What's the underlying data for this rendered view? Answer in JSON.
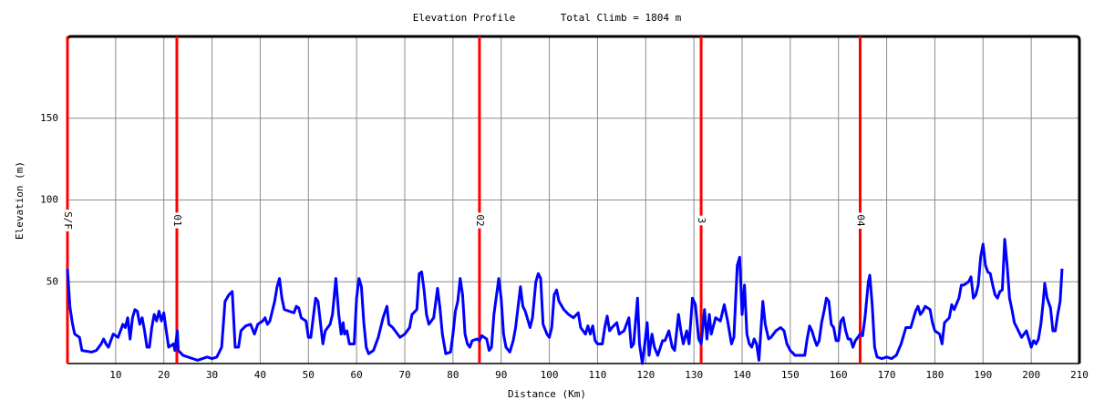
{
  "chart_data": {
    "type": "line",
    "title": "Elevation Profile",
    "subtitle": "Total Climb = 1804 m",
    "x_label": "Distance (Km)",
    "y_label": "Elevation (m)",
    "color": "#0000ff",
    "marker_color": "#ff0000",
    "grid": true,
    "xlim": [
      0,
      210
    ],
    "ylim": [
      0,
      200
    ],
    "xticks": [
      10,
      20,
      30,
      40,
      50,
      60,
      70,
      80,
      90,
      100,
      110,
      120,
      130,
      140,
      150,
      160,
      170,
      180,
      190,
      200,
      210
    ],
    "yticks": [
      50,
      100,
      150
    ],
    "markers": [
      {
        "name": "S/F",
        "x": 0
      },
      {
        "name": "01",
        "x": 22.7
      },
      {
        "name": "02",
        "x": 85.5
      },
      {
        "name": "3",
        "x": 131.5
      },
      {
        "name": "04",
        "x": 164.5
      }
    ],
    "x": [
      0,
      0.5,
      1,
      1.5,
      2.5,
      3,
      5,
      6,
      7,
      7.5,
      8,
      8.5,
      9.5,
      10.5,
      11,
      11.5,
      12,
      12.5,
      13,
      13.5,
      14,
      14.5,
      15,
      15.5,
      16,
      16.5,
      17,
      17.5,
      18,
      18.5,
      19,
      19.5,
      20,
      20.5,
      21,
      22,
      22.3,
      22.8,
      23,
      24,
      26,
      27,
      29,
      30,
      31,
      32,
      32.7,
      33.5,
      34.2,
      34.8,
      35.5,
      36,
      37,
      38,
      38.8,
      39.5,
      40.5,
      41,
      41.5,
      42,
      42.5,
      43,
      43.5,
      44,
      44.5,
      45,
      46,
      47,
      47.5,
      48,
      48.5,
      49.5,
      50,
      50.5,
      51,
      51.5,
      52,
      52.5,
      53,
      53.5,
      54.5,
      55,
      55.7,
      56.3,
      56.8,
      57.2,
      57.5,
      58,
      58.5,
      59.5,
      60,
      60.5,
      61,
      61.5,
      62,
      62.5,
      63.5,
      64.5,
      65.5,
      66.3,
      66.7,
      67.5,
      68,
      69,
      70,
      71,
      71.5,
      72.5,
      73,
      73.5,
      74,
      74.5,
      75,
      76,
      76.8,
      77.3,
      77.8,
      78.5,
      79.5,
      80,
      80.5,
      81,
      81.5,
      82,
      82.5,
      83,
      83.5,
      84,
      85,
      85.5,
      86,
      87,
      87.5,
      88,
      88.5,
      89.5,
      90,
      90.5,
      91,
      91.8,
      92.5,
      93,
      94,
      94.5,
      95,
      96,
      96.5,
      97.2,
      97.7,
      98.2,
      98.7,
      99.5,
      100,
      100.5,
      101,
      101.5,
      102,
      103,
      104,
      105,
      106,
      106.5,
      107,
      107.5,
      108,
      108.5,
      109,
      109.5,
      110,
      111,
      111.5,
      112,
      112.5,
      113,
      114,
      114.5,
      115.5,
      116.5,
      117,
      117.5,
      118.3,
      118.7,
      119.3,
      119.8,
      120.3,
      120.7,
      121.3,
      121.8,
      122.5,
      123.5,
      124,
      124.8,
      125.5,
      126,
      126.8,
      127.3,
      127.8,
      128.5,
      129,
      129.7,
      130.3,
      131,
      131.5,
      132.2,
      132.7,
      133.2,
      133.6,
      134.5,
      135.5,
      136.3,
      137,
      137.8,
      138.3,
      139,
      139.5,
      140,
      140.5,
      141,
      141.5,
      142,
      142.5,
      143,
      143.5,
      144.3,
      144.8,
      145.5,
      146,
      147,
      148,
      148.7,
      149.3,
      150,
      151,
      153,
      153.5,
      154,
      154.5,
      155,
      155.5,
      156,
      156.5,
      157,
      157.5,
      158,
      158.5,
      159,
      159.5,
      160,
      160.5,
      161,
      161.5,
      162,
      162.5,
      163,
      163.5,
      164.5,
      165,
      165.5,
      166.2,
      166.5,
      167,
      167.5,
      168,
      169,
      170,
      171,
      172,
      173,
      174,
      175,
      176,
      176.5,
      177,
      177.5,
      178,
      179,
      179.5,
      180,
      181,
      181.5,
      182,
      183,
      183.5,
      184,
      185,
      185.5,
      186,
      187,
      187.5,
      188,
      188.5,
      189,
      189.5,
      190,
      190.5,
      191,
      191.5,
      192,
      192.5,
      193,
      193.5,
      194,
      194.5,
      195,
      195.5,
      196,
      196.5,
      197,
      198,
      199,
      199.5,
      200,
      200.5,
      201,
      201.5,
      202,
      202.5,
      202.8,
      203.3,
      204,
      204.5,
      205,
      205.5,
      206,
      206.4
    ],
    "values": [
      58,
      35,
      25,
      18,
      16,
      8,
      7,
      8,
      12,
      15,
      12,
      10,
      18,
      16,
      20,
      24,
      22,
      28,
      15,
      28,
      33,
      32,
      24,
      28,
      20,
      10,
      10,
      22,
      30,
      26,
      32,
      26,
      31,
      20,
      10,
      12,
      8,
      20,
      8,
      5,
      3,
      2,
      4,
      3,
      4,
      10,
      38,
      42,
      44,
      10,
      10,
      20,
      23,
      24,
      18,
      24,
      26,
      28,
      24,
      26,
      32,
      38,
      47,
      52,
      40,
      33,
      32,
      31,
      35,
      34,
      28,
      26,
      16,
      16,
      28,
      40,
      38,
      25,
      12,
      20,
      24,
      30,
      52,
      30,
      18,
      25,
      18,
      20,
      12,
      12,
      40,
      52,
      47,
      25,
      10,
      6,
      8,
      16,
      28,
      35,
      24,
      22,
      20,
      16,
      18,
      22,
      30,
      33,
      55,
      56,
      45,
      30,
      24,
      28,
      46,
      34,
      18,
      6,
      7,
      18,
      32,
      38,
      52,
      42,
      18,
      12,
      10,
      14,
      15,
      14,
      17,
      15,
      8,
      10,
      30,
      52,
      40,
      18,
      10,
      7,
      14,
      22,
      47,
      35,
      32,
      22,
      28,
      50,
      55,
      52,
      24,
      18,
      16,
      22,
      42,
      45,
      38,
      33,
      30,
      28,
      31,
      22,
      20,
      18,
      23,
      18,
      23,
      14,
      12,
      12,
      22,
      29,
      20,
      22,
      25,
      18,
      20,
      28,
      10,
      12,
      40,
      12,
      0,
      12,
      25,
      5,
      18,
      10,
      5,
      14,
      14,
      20,
      10,
      8,
      30,
      20,
      12,
      20,
      12,
      40,
      36,
      15,
      12,
      33,
      15,
      30,
      18,
      28,
      26,
      36,
      26,
      12,
      16,
      60,
      65,
      30,
      48,
      18,
      12,
      10,
      15,
      12,
      2,
      38,
      24,
      15,
      16,
      20,
      22,
      20,
      12,
      8,
      5,
      5,
      15,
      23,
      20,
      15,
      11,
      14,
      25,
      32,
      40,
      38,
      24,
      22,
      14,
      14,
      26,
      28,
      20,
      15,
      15,
      10,
      14,
      18,
      17,
      28,
      50,
      54,
      36,
      10,
      4,
      3,
      4,
      3,
      5,
      12,
      22,
      22,
      32,
      35,
      30,
      32,
      35,
      33,
      25,
      20,
      18,
      12,
      25,
      28,
      36,
      33,
      40,
      48,
      48,
      50,
      53,
      40,
      42,
      48,
      65,
      73,
      60,
      56,
      55,
      48,
      42,
      40,
      44,
      45,
      76,
      60,
      40,
      33,
      25,
      22,
      16,
      20,
      15,
      10,
      14,
      12,
      15,
      24,
      38,
      49,
      40,
      34,
      20,
      20,
      30,
      38,
      58
    ]
  }
}
